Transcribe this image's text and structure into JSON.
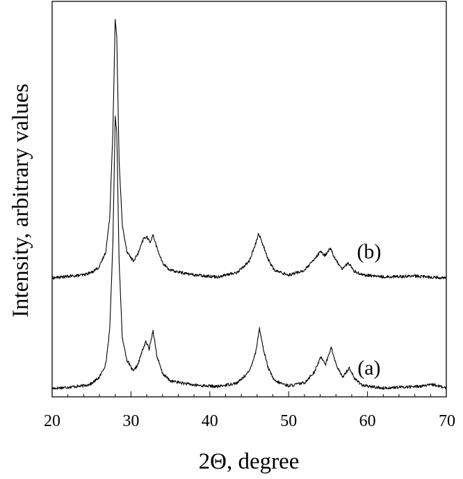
{
  "chart_data": {
    "type": "line",
    "title": "",
    "xlabel": "2Θ, degree",
    "ylabel": "Intensity, arbitrary values",
    "xlim": [
      20,
      70
    ],
    "x_ticks": [
      "20",
      "30",
      "40",
      "50",
      "60",
      "70"
    ],
    "y_ticks": [],
    "grid": false,
    "legend": "none",
    "line_color": "#000000",
    "series": [
      {
        "name": "(a)",
        "baseline": 0.0,
        "points": [
          [
            20,
            0.015
          ],
          [
            24,
            0.022
          ],
          [
            25,
            0.028
          ],
          [
            26,
            0.045
          ],
          [
            26.8,
            0.08
          ],
          [
            27.3,
            0.17
          ],
          [
            27.7,
            0.4
          ],
          [
            28.0,
            0.74
          ],
          [
            28.2,
            0.7
          ],
          [
            28.5,
            0.35
          ],
          [
            28.9,
            0.15
          ],
          [
            29.5,
            0.09
          ],
          [
            30.3,
            0.06
          ],
          [
            30.9,
            0.08
          ],
          [
            31.5,
            0.12
          ],
          [
            31.9,
            0.14
          ],
          [
            32.3,
            0.12
          ],
          [
            32.8,
            0.17
          ],
          [
            33.3,
            0.1
          ],
          [
            34.0,
            0.055
          ],
          [
            35.0,
            0.035
          ],
          [
            38.0,
            0.024
          ],
          [
            41.0,
            0.02
          ],
          [
            43.5,
            0.03
          ],
          [
            45.0,
            0.06
          ],
          [
            45.8,
            0.11
          ],
          [
            46.3,
            0.175
          ],
          [
            46.8,
            0.12
          ],
          [
            47.4,
            0.07
          ],
          [
            48.2,
            0.035
          ],
          [
            50.0,
            0.022
          ],
          [
            52.0,
            0.03
          ],
          [
            53.3,
            0.06
          ],
          [
            54.1,
            0.1
          ],
          [
            54.7,
            0.08
          ],
          [
            55.4,
            0.125
          ],
          [
            56.0,
            0.08
          ],
          [
            56.8,
            0.045
          ],
          [
            57.7,
            0.07
          ],
          [
            58.4,
            0.04
          ],
          [
            59.5,
            0.022
          ],
          [
            62.0,
            0.016
          ],
          [
            66.0,
            0.02
          ],
          [
            68.5,
            0.025
          ],
          [
            70,
            0.015
          ]
        ]
      },
      {
        "name": "(b)",
        "baseline": 0.31,
        "points": [
          [
            20,
            0.31
          ],
          [
            24,
            0.318
          ],
          [
            25,
            0.325
          ],
          [
            26,
            0.34
          ],
          [
            26.8,
            0.38
          ],
          [
            27.3,
            0.47
          ],
          [
            27.7,
            0.7
          ],
          [
            28.0,
            1.0
          ],
          [
            28.2,
            0.95
          ],
          [
            28.5,
            0.62
          ],
          [
            28.9,
            0.45
          ],
          [
            29.5,
            0.38
          ],
          [
            30.3,
            0.355
          ],
          [
            30.9,
            0.375
          ],
          [
            31.6,
            0.415
          ],
          [
            32.0,
            0.42
          ],
          [
            32.4,
            0.405
          ],
          [
            32.8,
            0.425
          ],
          [
            33.3,
            0.39
          ],
          [
            34.0,
            0.35
          ],
          [
            35.0,
            0.33
          ],
          [
            38.0,
            0.318
          ],
          [
            41.0,
            0.313
          ],
          [
            43.5,
            0.325
          ],
          [
            45.0,
            0.355
          ],
          [
            45.8,
            0.4
          ],
          [
            46.2,
            0.43
          ],
          [
            46.8,
            0.395
          ],
          [
            47.4,
            0.36
          ],
          [
            48.2,
            0.33
          ],
          [
            50.0,
            0.318
          ],
          [
            52.0,
            0.33
          ],
          [
            53.3,
            0.36
          ],
          [
            54.0,
            0.38
          ],
          [
            54.6,
            0.37
          ],
          [
            55.3,
            0.39
          ],
          [
            55.9,
            0.36
          ],
          [
            56.8,
            0.335
          ],
          [
            57.6,
            0.35
          ],
          [
            58.3,
            0.328
          ],
          [
            59.5,
            0.318
          ],
          [
            62.0,
            0.313
          ],
          [
            66.0,
            0.315
          ],
          [
            70,
            0.31
          ]
        ]
      }
    ]
  }
}
